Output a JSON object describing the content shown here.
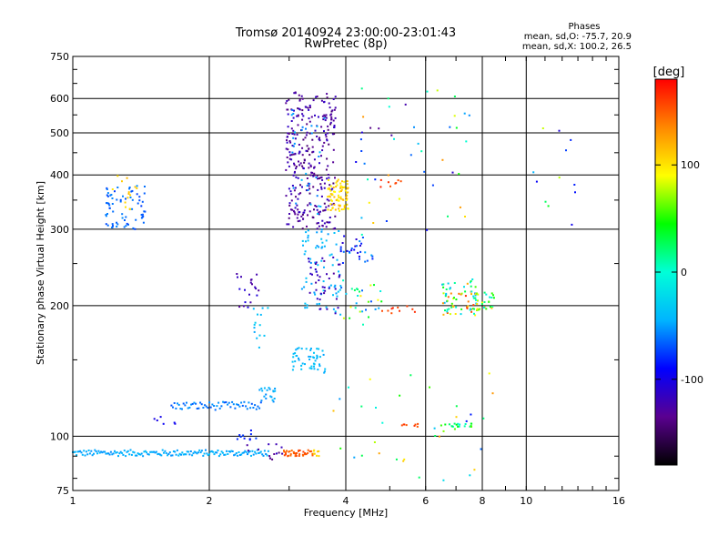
{
  "chart_data": {
    "type": "scatter",
    "title": "Tromsø 20140924 23:00:00-23:01:43",
    "subtitle": "RwPretec (8p)",
    "xlabel": "Frequency [MHz]",
    "ylabel": "Stationary phase Virtual Height [km]",
    "x_scale": "log",
    "y_scale": "log",
    "xlim": [
      1,
      16
    ],
    "ylim": [
      75,
      750
    ],
    "x_ticks": [
      1,
      2,
      4,
      6,
      8,
      10,
      16
    ],
    "x_tick_labels": [
      "1",
      "2",
      "4",
      "6",
      "8",
      "10",
      "16"
    ],
    "y_ticks": [
      75,
      100,
      200,
      300,
      400,
      500,
      600,
      750
    ],
    "y_tick_labels": [
      "75",
      "100",
      "200",
      "300",
      "400",
      "500",
      "600",
      "750"
    ],
    "grid": true,
    "stats": {
      "heading": "Phases",
      "line1": "mean, sd,O: -75.7, 20.9",
      "line2": "mean, sd,X: 100.2, 26.5"
    },
    "colorbar": {
      "label": "[deg]",
      "range": [
        -180,
        180
      ],
      "ticks": [
        100,
        0,
        -100
      ],
      "tick_labels": [
        "100",
        "0",
        "-100"
      ],
      "stops": [
        "#000000",
        "#5a0090",
        "#0000ff",
        "#00b4ff",
        "#00ffd8",
        "#00ff00",
        "#ffff00",
        "#ff8800",
        "#ff0000"
      ]
    },
    "clusters": [
      {
        "id": "E-trace",
        "f": [
          1.0,
          2.7
        ],
        "h": [
          90,
          93
        ],
        "phase": [
          -55,
          -40
        ],
        "n": 160,
        "shape": "trace"
      },
      {
        "id": "E-dark",
        "f": [
          2.4,
          2.9
        ],
        "h": [
          88,
          96
        ],
        "phase": [
          -140,
          -110
        ],
        "n": 14
      },
      {
        "id": "Es-orange",
        "f": [
          2.9,
          3.4
        ],
        "h": [
          90,
          93
        ],
        "phase": [
          140,
          160
        ],
        "n": 40
      },
      {
        "id": "Es-yellow",
        "f": [
          3.4,
          3.55
        ],
        "h": [
          90,
          93
        ],
        "phase": [
          100,
          120
        ],
        "n": 8
      },
      {
        "id": "low-1.5",
        "f": [
          1.5,
          1.7
        ],
        "h": [
          105,
          111
        ],
        "phase": [
          -110,
          -90
        ],
        "n": 6
      },
      {
        "id": "low-1.7",
        "f": [
          1.65,
          2.6
        ],
        "h": [
          115,
          120
        ],
        "phase": [
          -70,
          -50
        ],
        "n": 60,
        "shape": "trace"
      },
      {
        "id": "low-2.6",
        "f": [
          2.55,
          2.8
        ],
        "h": [
          120,
          130
        ],
        "phase": [
          -55,
          -40
        ],
        "n": 20
      },
      {
        "id": "low-2.3",
        "f": [
          2.3,
          2.6
        ],
        "h": [
          97,
          104
        ],
        "phase": [
          -90,
          -70
        ],
        "n": 10
      },
      {
        "id": "F-early",
        "f": [
          1.18,
          1.45
        ],
        "h": [
          300,
          380
        ],
        "phase": [
          -75,
          -55
        ],
        "n": 70
      },
      {
        "id": "F-early-y",
        "f": [
          1.22,
          1.4
        ],
        "h": [
          330,
          400
        ],
        "phase": [
          100,
          120
        ],
        "n": 14
      },
      {
        "id": "mid-2.3",
        "f": [
          2.3,
          2.6
        ],
        "h": [
          195,
          240
        ],
        "phase": [
          -140,
          -100
        ],
        "n": 20
      },
      {
        "id": "mid-2.5",
        "f": [
          2.5,
          2.7
        ],
        "h": [
          160,
          200
        ],
        "phase": [
          -50,
          -30
        ],
        "n": 14
      },
      {
        "id": "F2-x",
        "f": [
          2.95,
          3.8
        ],
        "h": [
          300,
          620
        ],
        "phase": [
          -145,
          -110
        ],
        "n": 300
      },
      {
        "id": "F2-o",
        "f": [
          3.0,
          3.6
        ],
        "h": [
          320,
          600
        ],
        "phase": [
          -60,
          -40
        ],
        "n": 30
      },
      {
        "id": "F2-yellow",
        "f": [
          3.65,
          4.05
        ],
        "h": [
          330,
          390
        ],
        "phase": [
          90,
          120
        ],
        "n": 80
      },
      {
        "id": "F1-o",
        "f": [
          3.2,
          3.9
        ],
        "h": [
          190,
          300
        ],
        "phase": [
          -55,
          -35
        ],
        "n": 70
      },
      {
        "id": "F1-x",
        "f": [
          3.3,
          3.9
        ],
        "h": [
          190,
          260
        ],
        "phase": [
          -130,
          -110
        ],
        "n": 40
      },
      {
        "id": "F1-low",
        "f": [
          3.05,
          3.6
        ],
        "h": [
          140,
          160
        ],
        "phase": [
          -50,
          -35
        ],
        "n": 50
      },
      {
        "id": "high-4",
        "f": [
          3.9,
          4.6
        ],
        "h": [
          250,
          290
        ],
        "phase": [
          -110,
          -40
        ],
        "n": 30
      },
      {
        "id": "mid-4.5",
        "f": [
          3.9,
          4.8
        ],
        "h": [
          180,
          230
        ],
        "phase": [
          -80,
          100
        ],
        "n": 30
      },
      {
        "id": "orange-5.5",
        "f": [
          4.8,
          5.7
        ],
        "h": [
          190,
          200
        ],
        "phase": [
          150,
          170
        ],
        "n": 10
      },
      {
        "id": "orange-5",
        "f": [
          4.7,
          5.4
        ],
        "h": [
          375,
          390
        ],
        "phase": [
          150,
          170
        ],
        "n": 8
      },
      {
        "id": "cluster-7",
        "f": [
          6.5,
          7.8
        ],
        "h": [
          190,
          230
        ],
        "phase": [
          -60,
          170
        ],
        "n": 70
      },
      {
        "id": "cluster-8",
        "f": [
          7.5,
          8.5
        ],
        "h": [
          195,
          215
        ],
        "phase": [
          -20,
          120
        ],
        "n": 30
      },
      {
        "id": "trace-5.5",
        "f": [
          5.3,
          5.8
        ],
        "h": [
          105,
          107
        ],
        "phase": [
          150,
          170
        ],
        "n": 8
      },
      {
        "id": "trace-6.5",
        "f": [
          6.4,
          7.6
        ],
        "h": [
          105,
          107
        ],
        "phase": [
          -10,
          60
        ],
        "n": 20
      },
      {
        "id": "scatter-high",
        "f": [
          4.2,
          7.5
        ],
        "h": [
          280,
          640
        ],
        "phase": [
          -140,
          130
        ],
        "n": 45
      },
      {
        "id": "scatter-low",
        "f": [
          3.6,
          9.0
        ],
        "h": [
          78,
          140
        ],
        "phase": [
          -90,
          130
        ],
        "n": 35
      },
      {
        "id": "right-sparse",
        "f": [
          9.0,
          13.0
        ],
        "h": [
          300,
          520
        ],
        "phase": [
          -120,
          120
        ],
        "n": 12
      }
    ]
  }
}
